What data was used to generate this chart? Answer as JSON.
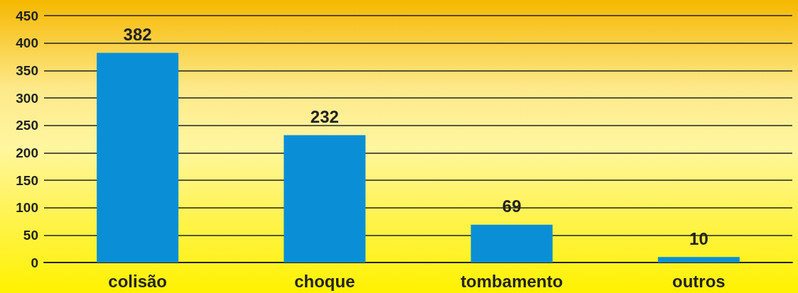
{
  "chart_data": {
    "type": "bar",
    "categories": [
      "colisão",
      "choque",
      "tombamento",
      "outros"
    ],
    "values": [
      382,
      232,
      69,
      10
    ],
    "color": "#0a8fd6",
    "ylim": [
      0,
      450
    ],
    "yticks": [
      0,
      50,
      100,
      150,
      200,
      250,
      300,
      350,
      400,
      450
    ],
    "grid": "y",
    "data_labels": true
  }
}
